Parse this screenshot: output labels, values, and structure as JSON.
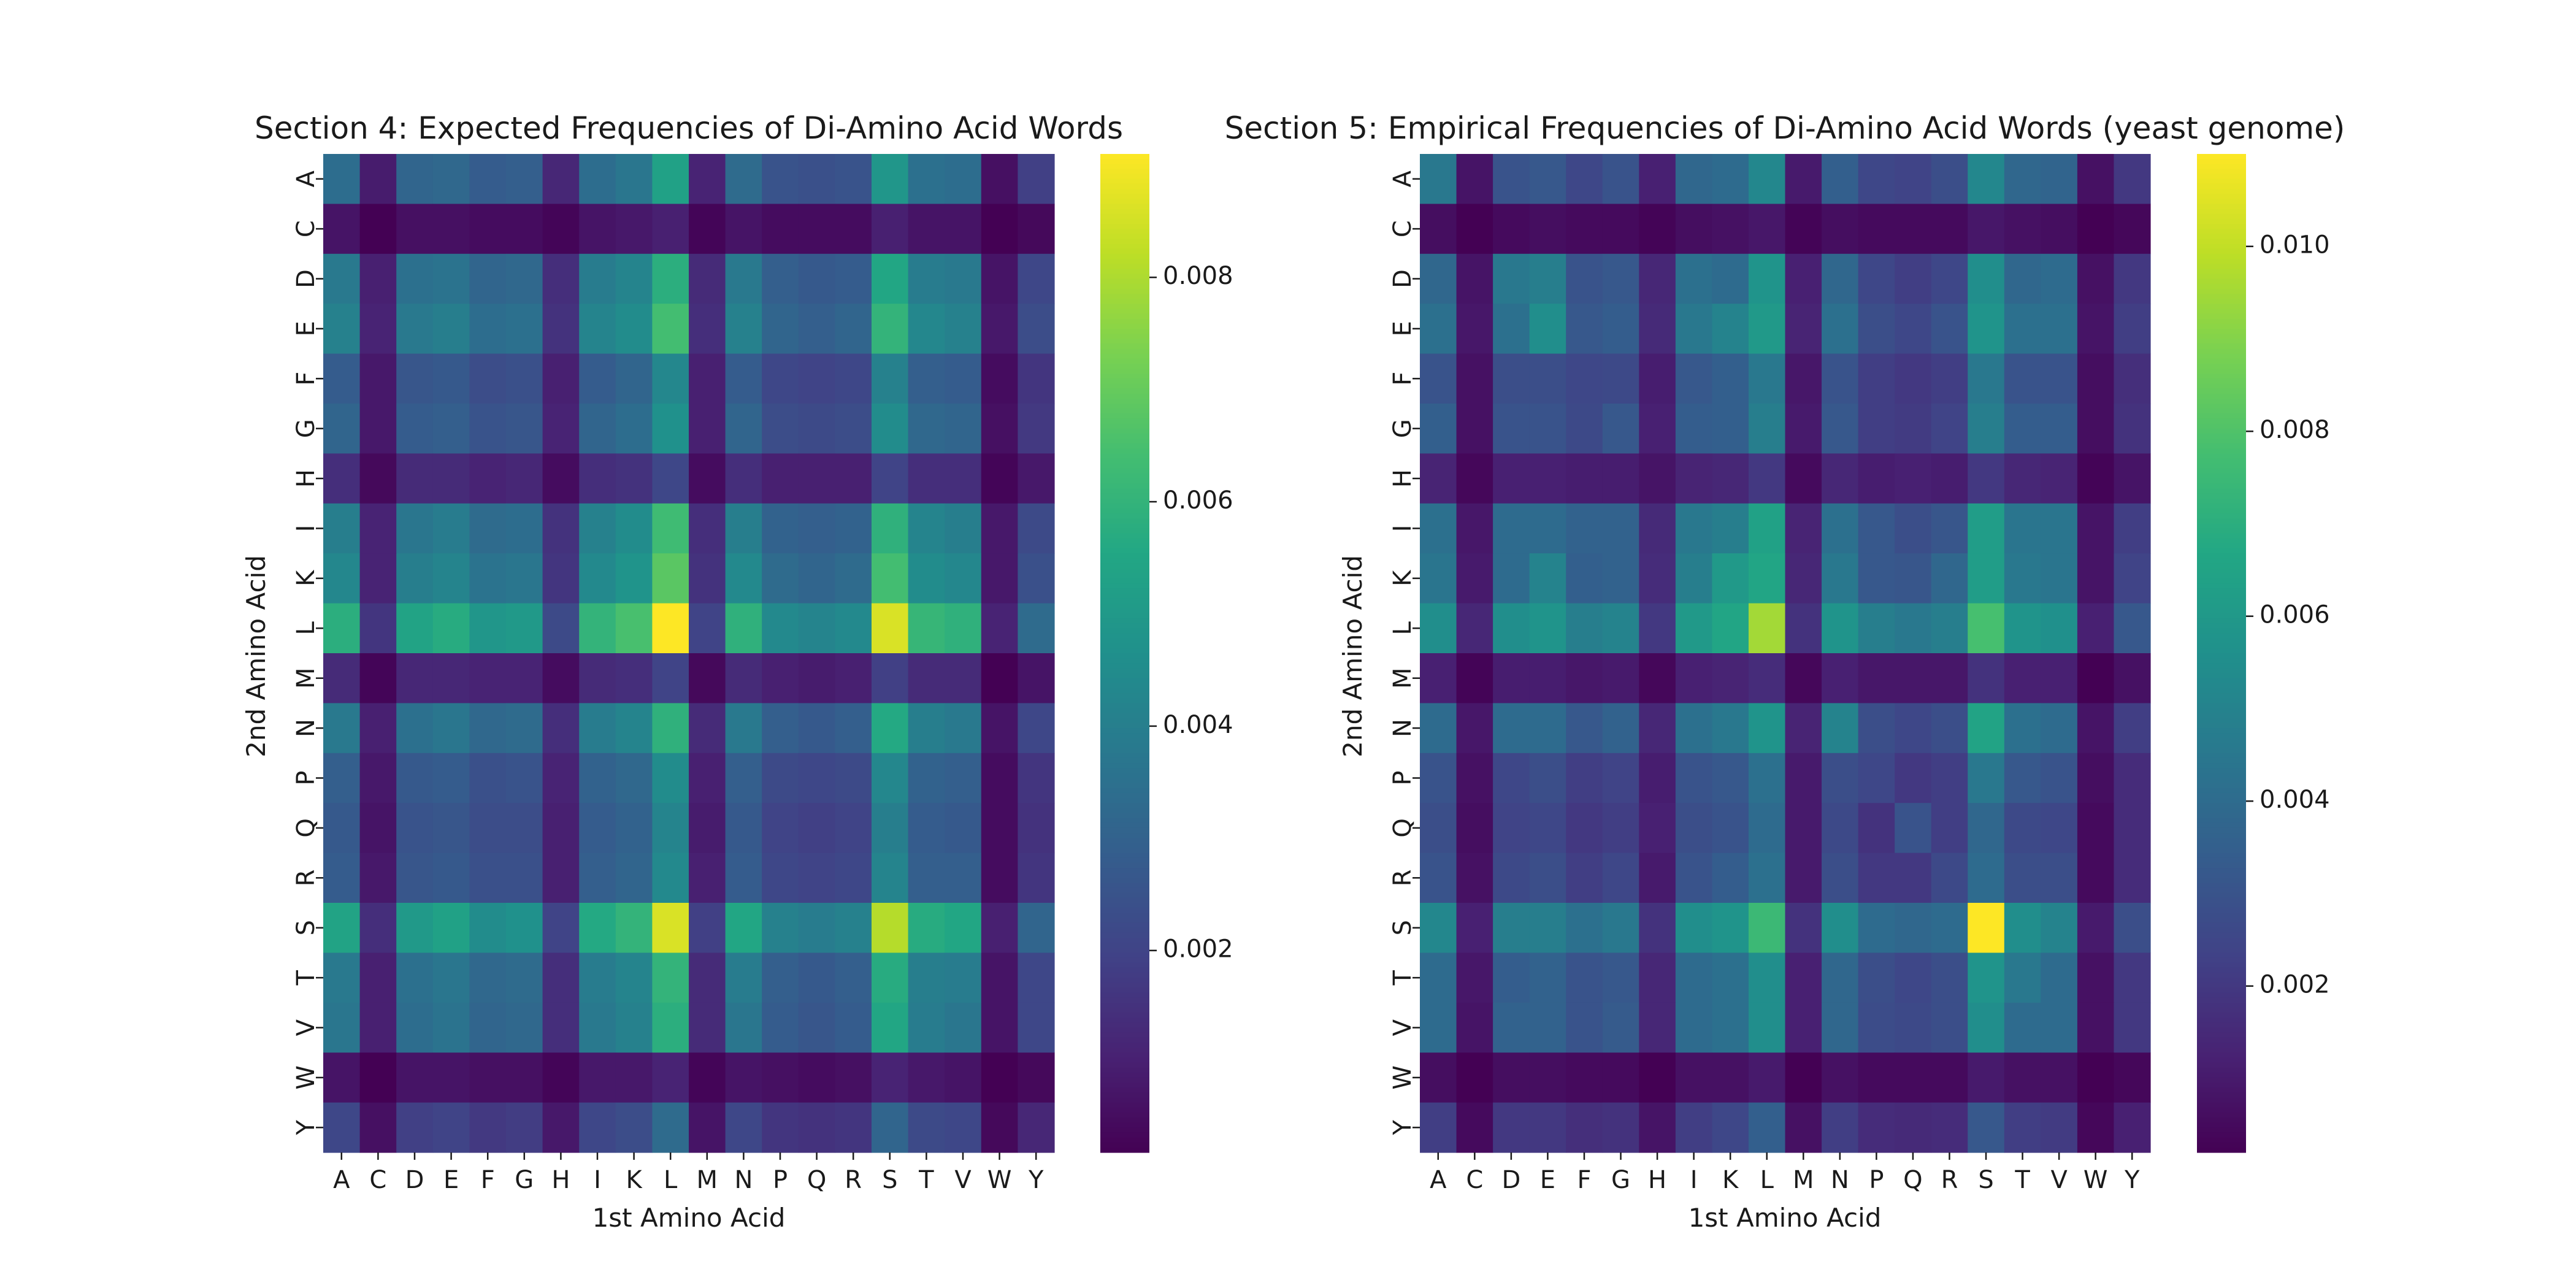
{
  "chart_data": [
    {
      "type": "heatmap",
      "title": "Section 4: Expected Frequencies of Di-Amino Acid Words",
      "xlabel": "1st Amino Acid",
      "ylabel": "2nd Amino Acid",
      "x_categories": [
        "A",
        "C",
        "D",
        "E",
        "F",
        "G",
        "H",
        "I",
        "K",
        "L",
        "M",
        "N",
        "P",
        "Q",
        "R",
        "S",
        "T",
        "V",
        "W",
        "Y"
      ],
      "y_categories": [
        "A",
        "C",
        "D",
        "E",
        "F",
        "G",
        "H",
        "I",
        "K",
        "L",
        "M",
        "N",
        "P",
        "Q",
        "R",
        "S",
        "T",
        "V",
        "W",
        "Y"
      ],
      "colormap": "viridis",
      "vmin": 0.0002,
      "vmax": 0.0091,
      "colorbar_ticks": [
        "0.002",
        "0.004",
        "0.006",
        "0.008"
      ],
      "colorbar_tick_values": [
        0.002,
        0.004,
        0.006,
        0.008
      ],
      "values": [
        [
          0.0034,
          0.0009,
          0.0031,
          0.0032,
          0.0028,
          0.0029,
          0.0012,
          0.0034,
          0.0037,
          0.0053,
          0.0011,
          0.0033,
          0.0025,
          0.0024,
          0.0025,
          0.0049,
          0.0035,
          0.0034,
          0.0006,
          0.0019
        ],
        [
          0.0007,
          0.0002,
          0.0006,
          0.0006,
          0.0005,
          0.0005,
          0.0003,
          0.0007,
          0.0008,
          0.001,
          0.0003,
          0.0007,
          0.0005,
          0.0005,
          0.0005,
          0.001,
          0.0007,
          0.0007,
          0.0002,
          0.0004
        ],
        [
          0.0038,
          0.001,
          0.0035,
          0.0036,
          0.0031,
          0.0032,
          0.0014,
          0.0039,
          0.0042,
          0.0058,
          0.0013,
          0.0038,
          0.0029,
          0.0027,
          0.0028,
          0.0055,
          0.0039,
          0.0038,
          0.0007,
          0.0021
        ],
        [
          0.0041,
          0.0011,
          0.0038,
          0.004,
          0.0034,
          0.0035,
          0.0015,
          0.0042,
          0.0045,
          0.0064,
          0.0014,
          0.0041,
          0.0031,
          0.0029,
          0.0031,
          0.006,
          0.0043,
          0.0041,
          0.0008,
          0.0023
        ],
        [
          0.0028,
          0.0008,
          0.0026,
          0.0027,
          0.0023,
          0.0024,
          0.001,
          0.0028,
          0.0031,
          0.0043,
          0.001,
          0.0028,
          0.0021,
          0.002,
          0.0021,
          0.0041,
          0.0029,
          0.0028,
          0.0005,
          0.0016
        ],
        [
          0.0031,
          0.0008,
          0.0028,
          0.0029,
          0.0025,
          0.0026,
          0.0011,
          0.0031,
          0.0034,
          0.0047,
          0.001,
          0.0031,
          0.0023,
          0.0022,
          0.0023,
          0.0045,
          0.0032,
          0.0031,
          0.0006,
          0.0017
        ],
        [
          0.0014,
          0.0004,
          0.0013,
          0.0013,
          0.0011,
          0.0012,
          0.0005,
          0.0014,
          0.0015,
          0.0021,
          0.0005,
          0.0014,
          0.001,
          0.001,
          0.001,
          0.002,
          0.0014,
          0.0014,
          0.0003,
          0.0008
        ],
        [
          0.004,
          0.0011,
          0.0037,
          0.0039,
          0.0033,
          0.0034,
          0.0015,
          0.0041,
          0.0045,
          0.0063,
          0.0014,
          0.004,
          0.003,
          0.0029,
          0.003,
          0.0059,
          0.0042,
          0.004,
          0.0008,
          0.0022
        ],
        [
          0.0043,
          0.0011,
          0.004,
          0.0042,
          0.0036,
          0.0037,
          0.0016,
          0.0044,
          0.0048,
          0.0068,
          0.0015,
          0.0044,
          0.0033,
          0.0031,
          0.0033,
          0.0064,
          0.0045,
          0.0043,
          0.0008,
          0.0024
        ],
        [
          0.0058,
          0.0016,
          0.0054,
          0.0057,
          0.0049,
          0.005,
          0.0022,
          0.006,
          0.0065,
          0.0091,
          0.002,
          0.0059,
          0.0044,
          0.0042,
          0.0044,
          0.0086,
          0.0061,
          0.0059,
          0.0011,
          0.0033
        ],
        [
          0.0013,
          0.0003,
          0.0012,
          0.0012,
          0.0011,
          0.0011,
          0.0005,
          0.0013,
          0.0014,
          0.002,
          0.0004,
          0.0013,
          0.001,
          0.0009,
          0.001,
          0.0019,
          0.0013,
          0.0013,
          0.0002,
          0.0007
        ],
        [
          0.0038,
          0.001,
          0.0035,
          0.0037,
          0.0032,
          0.0033,
          0.0014,
          0.0039,
          0.0042,
          0.0059,
          0.0013,
          0.0038,
          0.0029,
          0.0027,
          0.0029,
          0.0056,
          0.004,
          0.0038,
          0.0007,
          0.0021
        ],
        [
          0.0029,
          0.0008,
          0.0027,
          0.0028,
          0.0024,
          0.0025,
          0.0011,
          0.003,
          0.0032,
          0.0045,
          0.001,
          0.0029,
          0.0022,
          0.0021,
          0.0022,
          0.0043,
          0.003,
          0.0029,
          0.0005,
          0.0016
        ],
        [
          0.0027,
          0.0007,
          0.0025,
          0.0026,
          0.0023,
          0.0023,
          0.001,
          0.0028,
          0.003,
          0.0042,
          0.0009,
          0.0027,
          0.002,
          0.0019,
          0.002,
          0.004,
          0.0028,
          0.0027,
          0.0005,
          0.0015
        ],
        [
          0.0028,
          0.0008,
          0.0026,
          0.0027,
          0.0024,
          0.0024,
          0.001,
          0.0029,
          0.0031,
          0.0044,
          0.001,
          0.0028,
          0.0021,
          0.002,
          0.0021,
          0.0042,
          0.0029,
          0.0029,
          0.0005,
          0.0016
        ],
        [
          0.0054,
          0.0014,
          0.005,
          0.0053,
          0.0045,
          0.0047,
          0.002,
          0.0056,
          0.006,
          0.0086,
          0.0019,
          0.0055,
          0.0041,
          0.0039,
          0.0041,
          0.0081,
          0.0057,
          0.0055,
          0.001,
          0.0031
        ],
        [
          0.0038,
          0.001,
          0.0035,
          0.0037,
          0.0032,
          0.0033,
          0.0014,
          0.0039,
          0.0042,
          0.006,
          0.0013,
          0.0039,
          0.0029,
          0.0027,
          0.0029,
          0.0057,
          0.004,
          0.0039,
          0.0007,
          0.0021
        ],
        [
          0.0037,
          0.001,
          0.0034,
          0.0036,
          0.0031,
          0.0032,
          0.0014,
          0.0038,
          0.0041,
          0.0058,
          0.0013,
          0.0037,
          0.0028,
          0.0026,
          0.0028,
          0.0055,
          0.0039,
          0.0037,
          0.0007,
          0.0021
        ],
        [
          0.0007,
          0.0002,
          0.0007,
          0.0007,
          0.0006,
          0.0006,
          0.0003,
          0.0008,
          0.0008,
          0.0011,
          0.0003,
          0.0007,
          0.0006,
          0.0005,
          0.0006,
          0.0011,
          0.0008,
          0.0007,
          0.0002,
          0.0004
        ],
        [
          0.0021,
          0.0006,
          0.0019,
          0.002,
          0.0017,
          0.0018,
          0.0008,
          0.0021,
          0.0023,
          0.0033,
          0.0007,
          0.0021,
          0.0016,
          0.0015,
          0.0016,
          0.0031,
          0.0022,
          0.0021,
          0.0004,
          0.0012
        ]
      ]
    },
    {
      "type": "heatmap",
      "title": "Section 5: Empirical Frequencies of Di-Amino Acid Words (yeast genome)",
      "xlabel": "1st Amino Acid",
      "ylabel": "2nd Amino Acid",
      "x_categories": [
        "A",
        "C",
        "D",
        "E",
        "F",
        "G",
        "H",
        "I",
        "K",
        "L",
        "M",
        "N",
        "P",
        "Q",
        "R",
        "S",
        "T",
        "V",
        "W",
        "Y"
      ],
      "y_categories": [
        "A",
        "C",
        "D",
        "E",
        "F",
        "G",
        "H",
        "I",
        "K",
        "L",
        "M",
        "N",
        "P",
        "Q",
        "R",
        "S",
        "T",
        "V",
        "W",
        "Y"
      ],
      "colormap": "viridis",
      "vmin": 0.0002,
      "vmax": 0.011,
      "colorbar_ticks": [
        "0.002",
        "0.004",
        "0.006",
        "0.008",
        "0.010"
      ],
      "colorbar_tick_values": [
        0.002,
        0.004,
        0.006,
        0.008,
        0.01
      ],
      "values": [
        [
          0.0045,
          0.0008,
          0.003,
          0.0032,
          0.0025,
          0.003,
          0.0012,
          0.0038,
          0.004,
          0.0052,
          0.001,
          0.0035,
          0.0025,
          0.0024,
          0.0028,
          0.0052,
          0.0038,
          0.0037,
          0.0007,
          0.002
        ],
        [
          0.0006,
          0.0002,
          0.0005,
          0.0006,
          0.0005,
          0.0005,
          0.0003,
          0.0006,
          0.0007,
          0.0009,
          0.0003,
          0.0006,
          0.0005,
          0.0005,
          0.0005,
          0.0009,
          0.0007,
          0.0006,
          0.0002,
          0.0004
        ],
        [
          0.0038,
          0.0008,
          0.0045,
          0.0048,
          0.003,
          0.0032,
          0.0014,
          0.0042,
          0.004,
          0.0058,
          0.0012,
          0.0038,
          0.0025,
          0.0022,
          0.0025,
          0.0055,
          0.0038,
          0.004,
          0.0007,
          0.002
        ],
        [
          0.0042,
          0.0009,
          0.0042,
          0.0055,
          0.0032,
          0.0034,
          0.0015,
          0.0045,
          0.005,
          0.006,
          0.0013,
          0.0042,
          0.0028,
          0.0025,
          0.003,
          0.0058,
          0.0042,
          0.0042,
          0.0008,
          0.0022
        ],
        [
          0.003,
          0.0007,
          0.0028,
          0.0028,
          0.0025,
          0.0026,
          0.0011,
          0.0032,
          0.0035,
          0.0045,
          0.0009,
          0.003,
          0.0022,
          0.002,
          0.0022,
          0.0045,
          0.003,
          0.003,
          0.0006,
          0.0017
        ],
        [
          0.0035,
          0.0007,
          0.003,
          0.003,
          0.0026,
          0.0032,
          0.0012,
          0.0034,
          0.0035,
          0.0048,
          0.001,
          0.0032,
          0.0022,
          0.0021,
          0.0024,
          0.0048,
          0.0034,
          0.0034,
          0.0006,
          0.0018
        ],
        [
          0.0013,
          0.0004,
          0.0012,
          0.0012,
          0.0011,
          0.0011,
          0.0008,
          0.0013,
          0.0014,
          0.002,
          0.0005,
          0.0014,
          0.0011,
          0.0012,
          0.0011,
          0.002,
          0.0014,
          0.0013,
          0.0003,
          0.0008
        ],
        [
          0.0042,
          0.0009,
          0.004,
          0.004,
          0.0036,
          0.0036,
          0.0015,
          0.0045,
          0.0048,
          0.0064,
          0.0013,
          0.0042,
          0.0032,
          0.0028,
          0.0031,
          0.0062,
          0.0044,
          0.0044,
          0.0008,
          0.0022
        ],
        [
          0.0044,
          0.001,
          0.004,
          0.005,
          0.0035,
          0.0036,
          0.0016,
          0.0048,
          0.006,
          0.0066,
          0.0014,
          0.0045,
          0.0032,
          0.0031,
          0.0038,
          0.0062,
          0.0045,
          0.0044,
          0.0008,
          0.0024
        ],
        [
          0.0055,
          0.0014,
          0.0055,
          0.0058,
          0.0048,
          0.005,
          0.002,
          0.006,
          0.0066,
          0.0095,
          0.0018,
          0.0058,
          0.0048,
          0.0045,
          0.0048,
          0.0078,
          0.0058,
          0.0056,
          0.0012,
          0.0032
        ],
        [
          0.0012,
          0.0003,
          0.0011,
          0.0011,
          0.0009,
          0.001,
          0.0004,
          0.0012,
          0.0013,
          0.0016,
          0.0004,
          0.0012,
          0.0009,
          0.0009,
          0.0009,
          0.0018,
          0.0012,
          0.0012,
          0.0002,
          0.0007
        ],
        [
          0.004,
          0.0009,
          0.004,
          0.004,
          0.0032,
          0.0036,
          0.0014,
          0.0042,
          0.0045,
          0.0058,
          0.0013,
          0.005,
          0.0028,
          0.0025,
          0.0028,
          0.0065,
          0.0042,
          0.004,
          0.0008,
          0.0022
        ],
        [
          0.003,
          0.0007,
          0.0025,
          0.0028,
          0.0022,
          0.0024,
          0.0011,
          0.003,
          0.0032,
          0.0042,
          0.001,
          0.0028,
          0.0025,
          0.002,
          0.0022,
          0.0045,
          0.0032,
          0.003,
          0.0006,
          0.0016
        ],
        [
          0.0028,
          0.0006,
          0.0024,
          0.0025,
          0.002,
          0.0022,
          0.0012,
          0.0028,
          0.003,
          0.004,
          0.001,
          0.0026,
          0.0018,
          0.003,
          0.0022,
          0.0038,
          0.0026,
          0.0025,
          0.0005,
          0.0016
        ],
        [
          0.003,
          0.0007,
          0.0026,
          0.0028,
          0.0022,
          0.0025,
          0.001,
          0.003,
          0.0034,
          0.0042,
          0.001,
          0.0028,
          0.002,
          0.002,
          0.0026,
          0.004,
          0.0028,
          0.0028,
          0.0005,
          0.0016
        ],
        [
          0.0052,
          0.0012,
          0.0048,
          0.0048,
          0.0042,
          0.0045,
          0.0018,
          0.0055,
          0.0058,
          0.0075,
          0.0018,
          0.0055,
          0.004,
          0.0038,
          0.004,
          0.011,
          0.0055,
          0.005,
          0.001,
          0.0028
        ],
        [
          0.004,
          0.0009,
          0.0034,
          0.0036,
          0.003,
          0.0032,
          0.0014,
          0.004,
          0.0042,
          0.0055,
          0.0012,
          0.0038,
          0.0028,
          0.0025,
          0.0028,
          0.0058,
          0.0045,
          0.004,
          0.0007,
          0.002
        ],
        [
          0.004,
          0.0008,
          0.0036,
          0.0036,
          0.003,
          0.0033,
          0.0014,
          0.004,
          0.0042,
          0.0055,
          0.0012,
          0.0038,
          0.0027,
          0.0026,
          0.0028,
          0.0055,
          0.004,
          0.004,
          0.0007,
          0.002
        ],
        [
          0.0006,
          0.0002,
          0.0006,
          0.0006,
          0.0005,
          0.0005,
          0.0002,
          0.0007,
          0.0007,
          0.001,
          0.0002,
          0.0007,
          0.0005,
          0.0005,
          0.0005,
          0.001,
          0.0007,
          0.0007,
          0.0002,
          0.0004
        ],
        [
          0.0022,
          0.0005,
          0.002,
          0.002,
          0.0017,
          0.0018,
          0.0008,
          0.0022,
          0.0025,
          0.0035,
          0.0007,
          0.0022,
          0.0016,
          0.0015,
          0.0016,
          0.0032,
          0.0022,
          0.0021,
          0.0004,
          0.0012
        ]
      ]
    }
  ]
}
